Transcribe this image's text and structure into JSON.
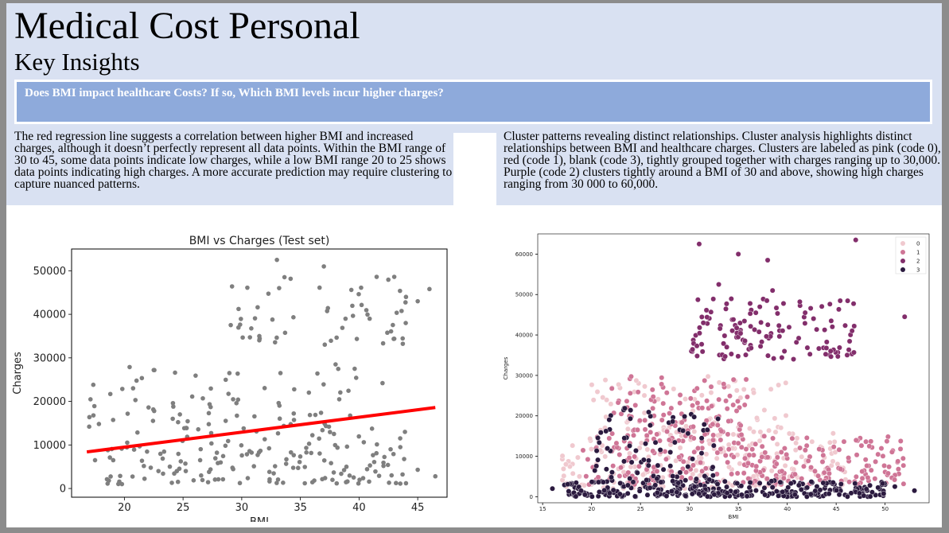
{
  "slide": {
    "title": "Medical Cost Personal",
    "subtitle": "Key Insights",
    "question": "Does BMI impact healthcare Costs? If so, Which BMI levels incur higher charges?",
    "left_text": "The red  regression line suggests a correlation between higher BMI and increased charges, although it doesn’t perfectly represent all data points. Within the BMI range of 30 to 45, some data points indicate low charges, while a low BMI range 20 to 25 shows data points indicating high charges. A more accurate prediction may require clustering to capture nuanced patterns.",
    "right_text": "Cluster patterns revealing distinct relationships. Cluster analysis highlights distinct relationships between BMI and healthcare charges. Clusters are labeled as pink (code 0), red (code 1), blank (code 3), tightly grouped together with charges ranging up to 30,000. Purple (code 2) clusters tightly around a BMI of 30 and above, showing high charges ranging from 30 000 to 60,000."
  },
  "chart_data": [
    {
      "type": "scatter",
      "title": "BMI vs Charges (Test set)",
      "xlabel": "BMI",
      "ylabel": "Charges",
      "xlim": [
        15.5,
        47.5
      ],
      "ylim": [
        -2000,
        55000
      ],
      "xticks": [
        20,
        25,
        30,
        35,
        40,
        45
      ],
      "yticks": [
        0,
        10000,
        20000,
        30000,
        40000,
        50000
      ],
      "grid": false,
      "point_color": "#7f7f7f",
      "points_clusters": [
        {
          "x": [
            18,
            44
          ],
          "y": [
            1000,
            14000
          ],
          "n": 160,
          "seed": 11
        },
        {
          "x": [
            17,
            40
          ],
          "y": [
            14000,
            28000
          ],
          "n": 70,
          "seed": 12
        },
        {
          "x": [
            29,
            44
          ],
          "y": [
            33000,
            49000
          ],
          "n": 55,
          "seed": 13
        }
      ],
      "points": [
        [
          33,
          52500
        ],
        [
          37,
          51000
        ],
        [
          46,
          45800
        ],
        [
          41.5,
          48600
        ],
        [
          43,
          48600
        ],
        [
          44,
          44000
        ],
        [
          45,
          43000
        ],
        [
          42,
          24200
        ],
        [
          46.5,
          2800
        ],
        [
          45,
          4300
        ],
        [
          44,
          1200
        ],
        [
          17,
          14200
        ],
        [
          17.5,
          6500
        ],
        [
          18.8,
          21700
        ],
        [
          22.5,
          27200
        ],
        [
          38,
          28500
        ],
        [
          31.5,
          35000
        ]
      ],
      "regression_line": {
        "x": [
          16.8,
          46.5
        ],
        "y": [
          8400,
          18600
        ],
        "color": "#ff0000"
      }
    },
    {
      "type": "scatter",
      "xlabel": "BMI",
      "ylabel": "Charges",
      "xlim": [
        14.5,
        54.5
      ],
      "ylim": [
        -1500,
        65000
      ],
      "xticks": [
        15,
        20,
        25,
        30,
        35,
        40,
        45,
        50
      ],
      "yticks": [
        0,
        10000,
        20000,
        30000,
        40000,
        50000,
        60000
      ],
      "grid": false,
      "legend": {
        "position": "top-right",
        "entries": [
          "0",
          "1",
          "2",
          "3"
        ]
      },
      "series": [
        {
          "name": "0",
          "color": "#f0c9cf",
          "regions": [
            {
              "x": [
                17,
                46
              ],
              "y": [
                2000,
                16000
              ],
              "n": 220,
              "seed": 21
            },
            {
              "x": [
                20,
                40
              ],
              "y": [
                16000,
                30000
              ],
              "n": 70,
              "seed": 22
            }
          ]
        },
        {
          "name": "1",
          "color": "#cf7596",
          "regions": [
            {
              "x": [
                19,
                52
              ],
              "y": [
                3000,
                15000
              ],
              "n": 260,
              "seed": 31
            },
            {
              "x": [
                22,
                36
              ],
              "y": [
                15000,
                30000
              ],
              "n": 110,
              "seed": 32
            }
          ]
        },
        {
          "name": "2",
          "color": "#822e6b",
          "regions": [
            {
              "x": [
                30,
                47
              ],
              "y": [
                34000,
                49000
              ],
              "n": 130,
              "seed": 41
            }
          ],
          "points": [
            [
              31,
              62500
            ],
            [
              35,
              60000
            ],
            [
              38,
              58500
            ],
            [
              33,
              52500
            ],
            [
              47,
              63500
            ],
            [
              52,
              44500
            ],
            [
              38.5,
              51000
            ]
          ]
        },
        {
          "name": "3",
          "color": "#2b1a3f",
          "regions": [
            {
              "x": [
                17,
                50
              ],
              "y": [
                0,
                4000
              ],
              "n": 300,
              "seed": 51
            },
            {
              "x": [
                20,
                33
              ],
              "y": [
                4000,
                22000
              ],
              "n": 80,
              "seed": 52
            }
          ],
          "points": [
            [
              53,
              1500
            ],
            [
              51,
              2500
            ],
            [
              16,
              2000
            ]
          ]
        }
      ]
    }
  ]
}
